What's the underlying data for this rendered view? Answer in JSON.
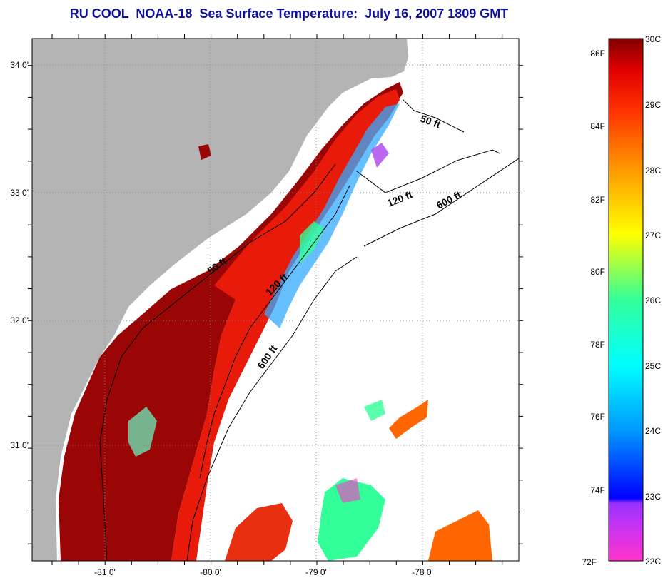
{
  "title": "RU COOL  NOAA-18  Sea Surface Temperature:  July 16, 2007 1809 GMT",
  "map": {
    "lat_ticks": [
      "31 0'",
      "32 0'",
      "33 0'",
      "34 0'"
    ],
    "lon_ticks": [
      "-81 0'",
      "-80 0'",
      "-79 0'",
      "-78 0'"
    ],
    "contour_labels": [
      {
        "text": "50 ft",
        "lon": -77.95,
        "lat": 33.6
      },
      {
        "text": "120 ft",
        "lon": -78.75,
        "lat": 32.95
      },
      {
        "text": "600 ft",
        "lon": -78.2,
        "lat": 32.95
      },
      {
        "text": "50 ft",
        "lon": -80.0,
        "lat": 32.5
      },
      {
        "text": "120 ft",
        "lon": -79.4,
        "lat": 32.25
      },
      {
        "text": "600 ft",
        "lon": -79.45,
        "lat": 31.65
      }
    ],
    "colors": {
      "land": "#b4b4b4",
      "no_data": "#ffffff",
      "title": "#1010a0"
    }
  },
  "colorbar": {
    "fahrenheit_labels": [
      "86F",
      "84F",
      "82F",
      "80F",
      "78F",
      "76F",
      "74F",
      "72F"
    ],
    "celsius_labels": [
      "30C",
      "29C",
      "28C",
      "27C",
      "26C",
      "25C",
      "24C",
      "23C",
      "22C"
    ],
    "stops": [
      "#ff33cc",
      "#9933ff",
      "#0000ff",
      "#0099ff",
      "#00ffff",
      "#33ff99",
      "#ffff00",
      "#ff9900",
      "#ff3300",
      "#e00000",
      "#800000"
    ]
  }
}
